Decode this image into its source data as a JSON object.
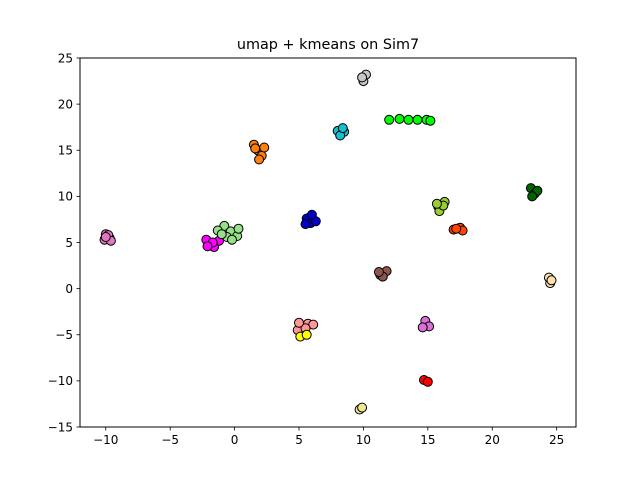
{
  "chart_data": {
    "type": "scatter",
    "title": "umap + kmeans on Sim7",
    "xlabel": "",
    "ylabel": "",
    "xlim": [
      -12,
      26.5
    ],
    "ylim": [
      -15,
      25
    ],
    "xticks": [
      -10,
      -5,
      0,
      5,
      10,
      15,
      20,
      25
    ],
    "yticks": [
      -15,
      -10,
      -5,
      0,
      5,
      10,
      15,
      20,
      25
    ],
    "xtick_labels": [
      "−10",
      "−5",
      "0",
      "5",
      "10",
      "15",
      "20",
      "25"
    ],
    "ytick_labels": [
      "−15",
      "−10",
      "−5",
      "0",
      "5",
      "10",
      "15",
      "20",
      "25"
    ],
    "grid": false,
    "marker_edge_color": "#000000",
    "clusters": [
      {
        "color": "#e377c2",
        "points": [
          [
            -10.0,
            5.9
          ],
          [
            -9.7,
            5.5
          ],
          [
            -10.1,
            5.3
          ],
          [
            -9.8,
            5.8
          ],
          [
            -9.6,
            5.2
          ],
          [
            -10.0,
            5.6
          ]
        ]
      },
      {
        "color": "#ff00ff",
        "points": [
          [
            -2.0,
            4.9
          ],
          [
            -1.6,
            4.5
          ],
          [
            -1.2,
            5.2
          ],
          [
            -2.2,
            5.3
          ],
          [
            -1.7,
            5.0
          ],
          [
            -2.1,
            4.6
          ]
        ]
      },
      {
        "color": "#98df8a",
        "points": [
          [
            -0.8,
            6.8
          ],
          [
            -0.3,
            6.2
          ],
          [
            0.2,
            5.7
          ],
          [
            -1.3,
            6.3
          ],
          [
            -0.6,
            5.6
          ],
          [
            0.3,
            6.5
          ],
          [
            -1.0,
            5.9
          ],
          [
            -0.2,
            5.3
          ]
        ]
      },
      {
        "color": "#ff7f0e",
        "points": [
          [
            1.5,
            15.6
          ],
          [
            1.8,
            15.0
          ],
          [
            2.1,
            14.4
          ],
          [
            1.9,
            14.0
          ],
          [
            2.3,
            15.3
          ],
          [
            1.6,
            15.2
          ]
        ]
      },
      {
        "color": "#c7c7c7",
        "points": [
          [
            10.0,
            22.5
          ],
          [
            10.2,
            23.2
          ],
          [
            9.9,
            22.9
          ]
        ]
      },
      {
        "color": "#00ff00",
        "points": [
          [
            12.0,
            18.3
          ],
          [
            12.8,
            18.4
          ],
          [
            13.5,
            18.3
          ],
          [
            14.2,
            18.3
          ],
          [
            14.9,
            18.3
          ],
          [
            15.2,
            18.2
          ]
        ]
      },
      {
        "color": "#17becf",
        "points": [
          [
            8.0,
            17.1
          ],
          [
            8.5,
            17.0
          ],
          [
            8.2,
            16.6
          ],
          [
            8.4,
            17.4
          ]
        ]
      },
      {
        "color": "#0000cd",
        "points": [
          [
            5.6,
            7.6
          ],
          [
            5.9,
            7.1
          ],
          [
            6.3,
            7.3
          ],
          [
            5.5,
            7.0
          ],
          [
            6.0,
            8.0
          ]
        ]
      },
      {
        "color": "#9acd32",
        "points": [
          [
            15.8,
            8.9
          ],
          [
            16.3,
            9.4
          ],
          [
            15.9,
            8.4
          ],
          [
            16.2,
            9.0
          ],
          [
            15.7,
            9.2
          ]
        ]
      },
      {
        "color": "#ff4500",
        "points": [
          [
            17.0,
            6.4
          ],
          [
            17.5,
            6.6
          ],
          [
            17.7,
            6.3
          ],
          [
            17.2,
            6.5
          ]
        ]
      },
      {
        "color": "#006400",
        "points": [
          [
            23.0,
            10.9
          ],
          [
            23.3,
            10.3
          ],
          [
            23.5,
            10.6
          ],
          [
            23.1,
            10.0
          ]
        ]
      },
      {
        "color": "#ffdead",
        "points": [
          [
            24.5,
            0.6
          ],
          [
            24.4,
            1.2
          ],
          [
            24.6,
            0.9
          ]
        ]
      },
      {
        "color": "#8c564b",
        "points": [
          [
            11.3,
            1.5
          ],
          [
            11.8,
            1.9
          ],
          [
            11.5,
            1.3
          ],
          [
            11.2,
            1.8
          ]
        ]
      },
      {
        "color": "#ff9896",
        "points": [
          [
            5.2,
            -4.0
          ],
          [
            5.7,
            -3.8
          ],
          [
            4.9,
            -4.5
          ],
          [
            6.1,
            -3.9
          ],
          [
            5.5,
            -4.3
          ],
          [
            5.0,
            -3.7
          ]
        ]
      },
      {
        "color": "#ffff00",
        "points": [
          [
            5.1,
            -5.2
          ],
          [
            5.6,
            -5.0
          ]
        ]
      },
      {
        "color": "#da70d6",
        "points": [
          [
            14.8,
            -3.5
          ],
          [
            15.1,
            -4.1
          ],
          [
            14.6,
            -4.2
          ]
        ]
      },
      {
        "color": "#ff0000",
        "points": [
          [
            14.7,
            -9.9
          ],
          [
            15.0,
            -10.1
          ]
        ]
      },
      {
        "color": "#f0e68c",
        "points": [
          [
            9.7,
            -13.1
          ],
          [
            9.9,
            -12.9
          ]
        ]
      }
    ]
  }
}
